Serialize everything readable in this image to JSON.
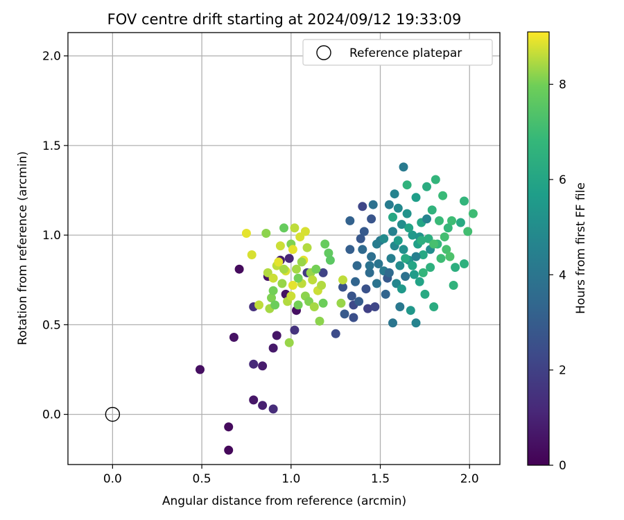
{
  "chart_data": {
    "type": "scatter",
    "title": "FOV centre drift starting at 2024/09/12 19:33:09",
    "xlabel": "Angular distance from reference (arcmin)",
    "ylabel": "Rotation from reference (arcmin)",
    "xlim": [
      -0.25,
      2.17
    ],
    "ylim": [
      -0.28,
      2.13
    ],
    "x_ticks": [
      0.0,
      0.5,
      1.0,
      1.5,
      2.0
    ],
    "x_tick_labels": [
      "0.0",
      "0.5",
      "1.0",
      "1.5",
      "2.0"
    ],
    "y_ticks": [
      0.0,
      0.5,
      1.0,
      1.5,
      2.0
    ],
    "y_tick_labels": [
      "0.0",
      "0.5",
      "1.0",
      "1.5",
      "2.0"
    ],
    "grid": true,
    "legend": {
      "placement": "top-right",
      "entries": [
        "Reference platepar"
      ]
    },
    "reference_point": {
      "name": "Reference platepar",
      "x": 0.0,
      "y": 0.0
    },
    "colorbar": {
      "label": "Hours from first FF file",
      "range": [
        0,
        9.1
      ],
      "ticks": [
        0,
        2,
        4,
        6,
        8
      ],
      "tick_labels": [
        "0",
        "2",
        "4",
        "6",
        "8"
      ],
      "colormap": "viridis"
    },
    "points": [
      [
        0.65,
        -0.2,
        0.2
      ],
      [
        0.65,
        -0.07,
        0.3
      ],
      [
        0.49,
        0.25,
        0.4
      ],
      [
        0.68,
        0.43,
        0.5
      ],
      [
        0.71,
        0.81,
        0.3
      ],
      [
        0.79,
        0.08,
        0.6
      ],
      [
        0.84,
        0.05,
        0.9
      ],
      [
        0.9,
        0.03,
        1.3
      ],
      [
        0.79,
        0.28,
        1.2
      ],
      [
        0.84,
        0.27,
        0.8
      ],
      [
        0.9,
        0.37,
        0.7
      ],
      [
        0.92,
        0.44,
        0.6
      ],
      [
        0.79,
        0.6,
        1.4
      ],
      [
        0.87,
        0.77,
        0.5
      ],
      [
        0.94,
        0.86,
        0.9
      ],
      [
        0.97,
        0.67,
        0.5
      ],
      [
        0.99,
        0.87,
        1.1
      ],
      [
        1.02,
        0.47,
        1.5
      ],
      [
        1.03,
        0.58,
        0.4
      ],
      [
        1.09,
        0.79,
        1.8
      ],
      [
        1.18,
        0.79,
        2.1
      ],
      [
        1.25,
        0.45,
        2.4
      ],
      [
        1.29,
        0.71,
        2.6
      ],
      [
        1.3,
        0.56,
        2.9
      ],
      [
        1.33,
        0.92,
        3.1
      ],
      [
        1.34,
        0.66,
        2.7
      ],
      [
        1.33,
        1.08,
        3.2
      ],
      [
        1.35,
        0.54,
        2.5
      ],
      [
        1.35,
        0.61,
        2.3
      ],
      [
        1.36,
        0.74,
        3.3
      ],
      [
        1.37,
        0.83,
        3.4
      ],
      [
        1.38,
        0.63,
        3.0
      ],
      [
        1.39,
        0.98,
        2.8
      ],
      [
        1.4,
        0.92,
        3.5
      ],
      [
        1.4,
        1.16,
        2.2
      ],
      [
        1.41,
        1.02,
        2.9
      ],
      [
        1.42,
        0.7,
        2.6
      ],
      [
        1.43,
        0.59,
        2.0
      ],
      [
        1.44,
        0.79,
        3.6
      ],
      [
        1.45,
        0.88,
        3.7
      ],
      [
        1.45,
        1.09,
        2.7
      ],
      [
        1.46,
        1.17,
        3.8
      ],
      [
        1.47,
        0.6,
        2.2
      ],
      [
        1.48,
        0.73,
        3.9
      ],
      [
        1.49,
        0.84,
        4.0
      ],
      [
        1.5,
        0.97,
        4.1
      ],
      [
        1.52,
        0.8,
        4.2
      ],
      [
        1.53,
        0.67,
        3.3
      ],
      [
        1.54,
        0.76,
        2.9
      ],
      [
        1.55,
        1.17,
        4.3
      ],
      [
        1.56,
        0.87,
        4.4
      ],
      [
        1.57,
        0.51,
        4.0
      ],
      [
        1.57,
        1.02,
        4.5
      ],
      [
        1.58,
        1.23,
        4.6
      ],
      [
        1.59,
        0.73,
        4.7
      ],
      [
        1.6,
        1.15,
        4.8
      ],
      [
        1.61,
        0.83,
        4.9
      ],
      [
        1.61,
        0.6,
        4.1
      ],
      [
        1.62,
        1.06,
        5.0
      ],
      [
        1.63,
        0.92,
        5.1
      ],
      [
        1.63,
        1.38,
        4.2
      ],
      [
        1.64,
        0.77,
        3.8
      ],
      [
        1.65,
        1.12,
        5.2
      ],
      [
        1.66,
        0.86,
        5.3
      ],
      [
        1.67,
        0.58,
        5.4
      ],
      [
        1.68,
        1.0,
        5.5
      ],
      [
        1.69,
        0.78,
        5.6
      ],
      [
        1.7,
        0.51,
        4.6
      ],
      [
        1.7,
        1.21,
        5.7
      ],
      [
        1.71,
        0.95,
        5.8
      ],
      [
        1.72,
        0.74,
        5.9
      ],
      [
        1.73,
        1.07,
        6.0
      ],
      [
        1.74,
        0.89,
        6.1
      ],
      [
        1.75,
        0.67,
        6.2
      ],
      [
        1.76,
        1.27,
        6.3
      ],
      [
        1.77,
        0.98,
        6.4
      ],
      [
        1.78,
        0.82,
        6.5
      ],
      [
        1.79,
        1.14,
        6.6
      ],
      [
        1.8,
        0.6,
        6.3
      ],
      [
        1.81,
        1.31,
        6.7
      ],
      [
        1.82,
        0.95,
        6.8
      ],
      [
        1.83,
        1.08,
        6.9
      ],
      [
        1.84,
        0.87,
        7.0
      ],
      [
        1.85,
        1.22,
        6.9
      ],
      [
        1.86,
        0.99,
        7.1
      ],
      [
        1.87,
        0.92,
        7.2
      ],
      [
        1.88,
        1.04,
        6.8
      ],
      [
        1.89,
        0.88,
        7.3
      ],
      [
        1.9,
        1.08,
        7.0
      ],
      [
        1.91,
        0.72,
        6.6
      ],
      [
        1.92,
        0.82,
        6.4
      ],
      [
        1.95,
        1.07,
        6.2
      ],
      [
        1.97,
        0.84,
        6.5
      ],
      [
        1.97,
        1.19,
        6.7
      ],
      [
        1.99,
        1.02,
        7.1
      ],
      [
        2.02,
        1.12,
        7.0
      ],
      [
        1.55,
        0.79,
        3.5
      ],
      [
        1.58,
        0.94,
        4.8
      ],
      [
        1.62,
        0.7,
        5.5
      ],
      [
        1.66,
        1.04,
        5.9
      ],
      [
        1.68,
        0.83,
        6.0
      ],
      [
        1.72,
        0.99,
        5.3
      ],
      [
        1.74,
        0.79,
        6.7
      ],
      [
        1.76,
        1.09,
        4.6
      ],
      [
        1.78,
        0.92,
        5.0
      ],
      [
        1.6,
        0.97,
        5.6
      ],
      [
        1.64,
        0.87,
        6.2
      ],
      [
        1.7,
        0.88,
        4.4
      ],
      [
        1.73,
        0.97,
        6.4
      ],
      [
        1.8,
        0.95,
        7.2
      ],
      [
        1.52,
        0.98,
        4.9
      ],
      [
        1.57,
        1.1,
        6.1
      ],
      [
        1.65,
        1.28,
        6.6
      ],
      [
        1.48,
        0.95,
        4.3
      ],
      [
        1.44,
        0.83,
        3.9
      ],
      [
        0.75,
        1.01,
        8.9
      ],
      [
        0.78,
        0.89,
        8.8
      ],
      [
        0.82,
        0.61,
        8.6
      ],
      [
        0.86,
        1.01,
        8.2
      ],
      [
        0.87,
        0.79,
        8.5
      ],
      [
        0.88,
        0.59,
        8.4
      ],
      [
        0.89,
        0.65,
        8.1
      ],
      [
        0.9,
        0.69,
        8.0
      ],
      [
        0.9,
        0.76,
        8.7
      ],
      [
        0.91,
        0.61,
        7.9
      ],
      [
        0.92,
        0.83,
        8.6
      ],
      [
        0.93,
        0.85,
        8.9
      ],
      [
        0.94,
        0.94,
        8.7
      ],
      [
        0.95,
        0.73,
        8.3
      ],
      [
        0.96,
        1.04,
        7.8
      ],
      [
        0.97,
        0.8,
        8.8
      ],
      [
        0.98,
        0.63,
        8.5
      ],
      [
        0.99,
        0.4,
        8.3
      ],
      [
        1.0,
        0.95,
        8.1
      ],
      [
        1.0,
        0.66,
        8.7
      ],
      [
        1.01,
        0.72,
        8.9
      ],
      [
        1.02,
        1.04,
        8.6
      ],
      [
        1.03,
        0.81,
        8.4
      ],
      [
        1.04,
        0.61,
        8.0
      ],
      [
        1.05,
        0.99,
        8.8
      ],
      [
        1.06,
        0.73,
        8.6
      ],
      [
        1.07,
        0.86,
        8.9
      ],
      [
        1.08,
        0.66,
        8.2
      ],
      [
        1.08,
        1.02,
        8.8
      ],
      [
        1.09,
        0.93,
        8.5
      ],
      [
        1.1,
        0.63,
        8.1
      ],
      [
        1.11,
        0.79,
        8.3
      ],
      [
        1.12,
        0.75,
        8.6
      ],
      [
        1.13,
        0.6,
        8.4
      ],
      [
        1.14,
        0.81,
        8.0
      ],
      [
        1.15,
        0.69,
        8.7
      ],
      [
        1.16,
        0.52,
        8.2
      ],
      [
        1.17,
        0.72,
        8.5
      ],
      [
        1.18,
        0.62,
        7.9
      ],
      [
        1.19,
        0.95,
        7.8
      ],
      [
        1.21,
        0.9,
        7.7
      ],
      [
        1.22,
        0.86,
        7.6
      ],
      [
        1.28,
        0.62,
        8.3
      ],
      [
        1.29,
        0.75,
        8.6
      ],
      [
        1.06,
        0.85,
        8.3
      ],
      [
        0.96,
        0.81,
        8.4
      ],
      [
        1.01,
        0.92,
        8.9
      ],
      [
        1.04,
        0.76,
        8.0
      ]
    ]
  }
}
